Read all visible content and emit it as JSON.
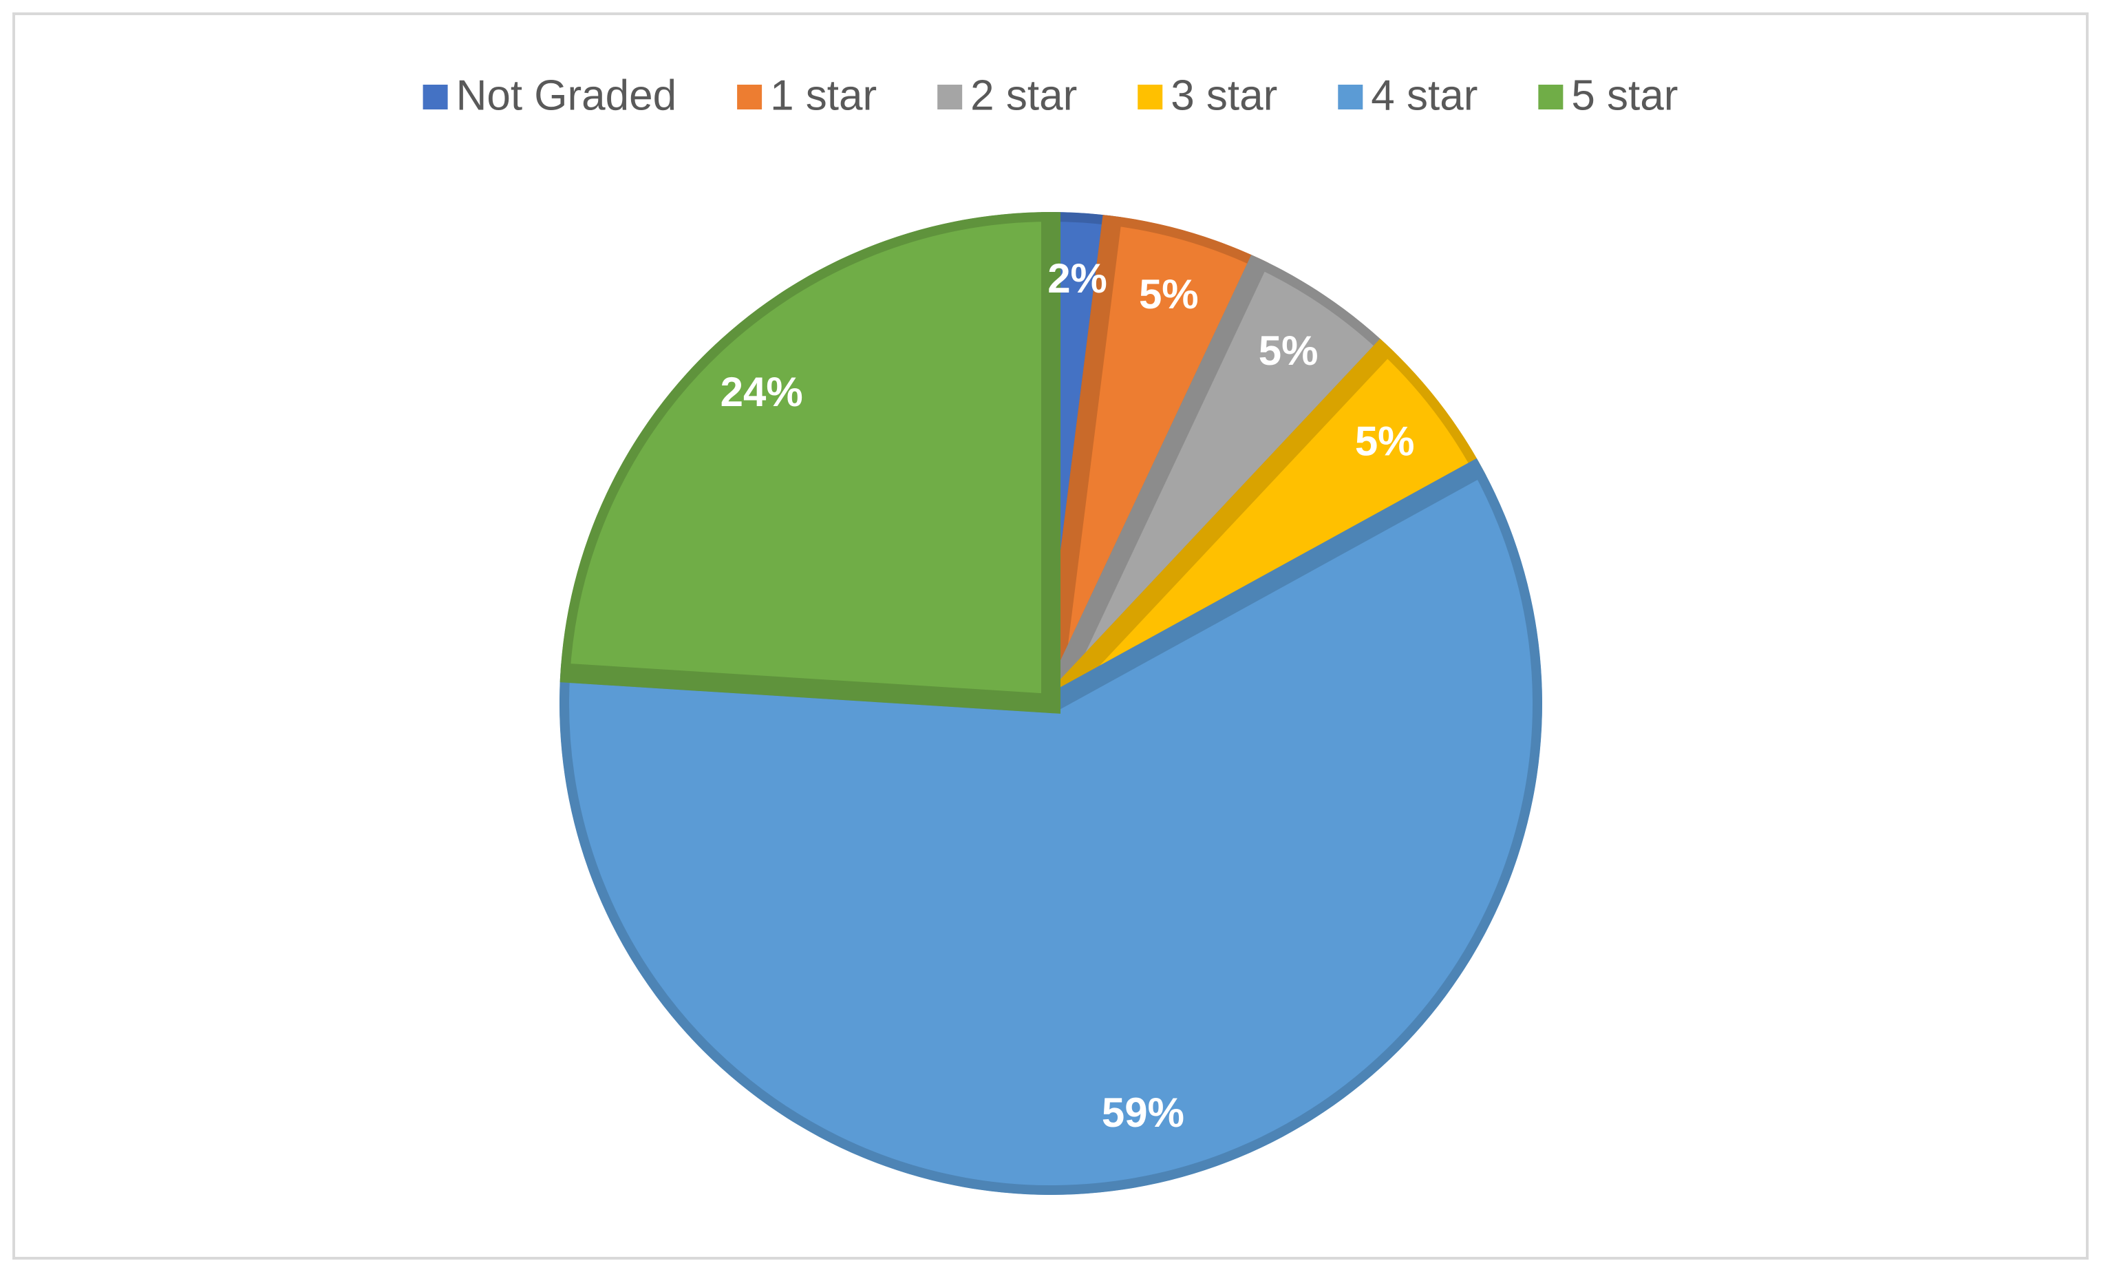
{
  "chart_data": {
    "type": "pie",
    "categories": [
      "Not Graded",
      "1 star",
      "2 star",
      "3 star",
      "4 star",
      "5 star"
    ],
    "values": [
      2,
      5,
      5,
      5,
      59,
      24
    ],
    "value_labels": [
      "2%",
      "5%",
      "5%",
      "5%",
      "59%",
      "24%"
    ],
    "colors": [
      "#4472c4",
      "#ed7d31",
      "#a5a5a5",
      "#ffc000",
      "#5b9bd5",
      "#70ad47"
    ],
    "legend": "top"
  }
}
